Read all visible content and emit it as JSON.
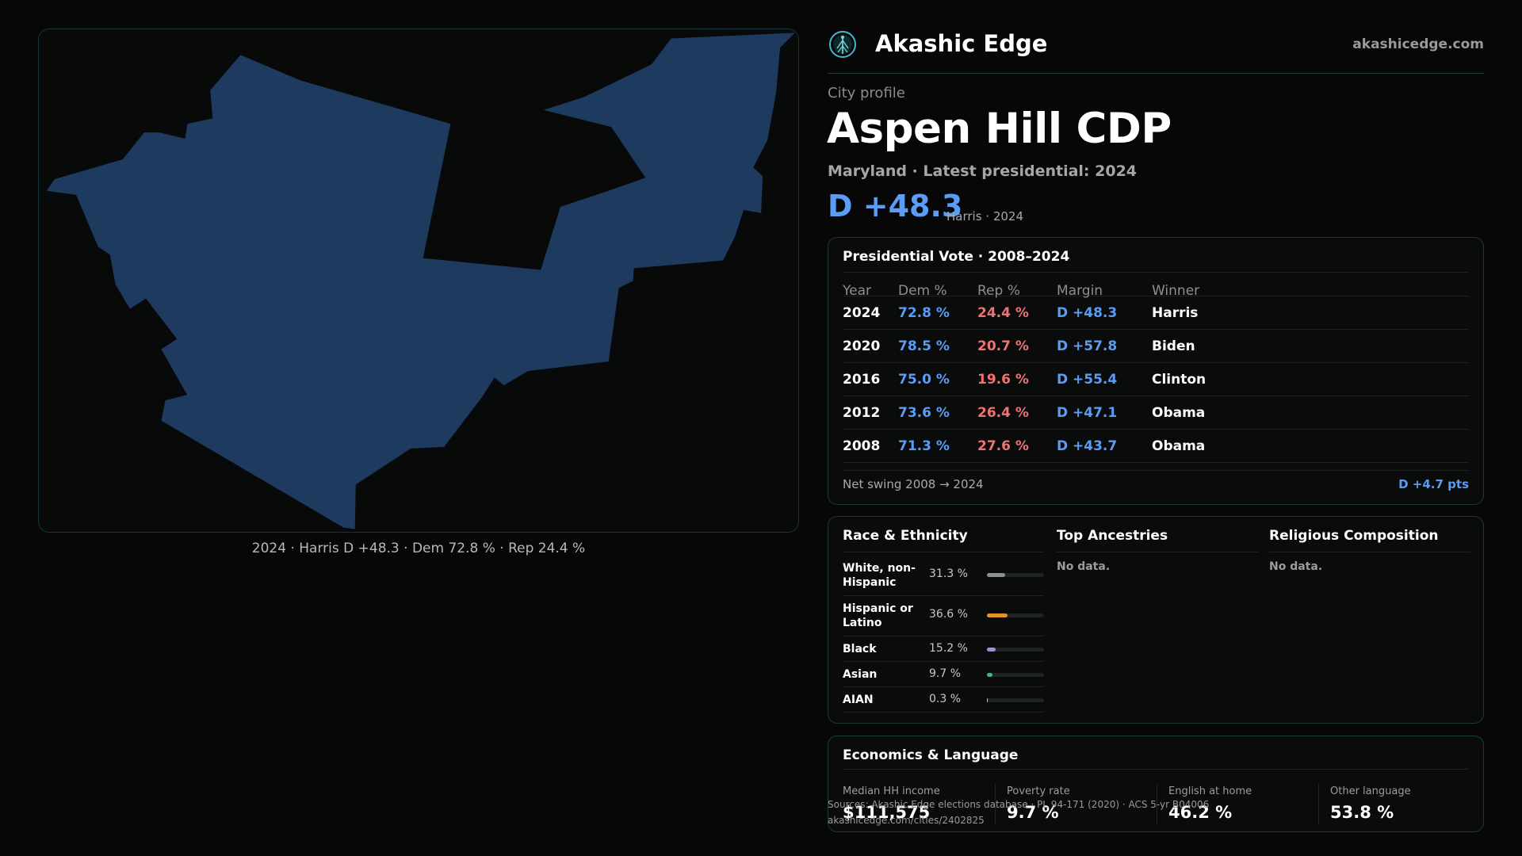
{
  "map": {
    "caption": "2024 · Harris D +48.3 · Dem 72.8 % · Rep 24.4 %",
    "fill_color": "#1f3a5f"
  },
  "header": {
    "logo_icon": "tree-of-life-icon",
    "brand": "Akashic Edge",
    "site": "akashicedge.com"
  },
  "profile": {
    "kicker": "City profile",
    "city": "Aspen Hill CDP",
    "subtitle": "Maryland · Latest presidential: 2024",
    "margin": "D +48.3",
    "margin_note": "Harris · 2024"
  },
  "vote": {
    "title": "Presidential Vote · 2008–2024",
    "headers": {
      "year": "Year",
      "dem": "Dem %",
      "rep": "Rep %",
      "margin": "Margin",
      "winner": "Winner"
    },
    "rows": [
      {
        "year": "2024",
        "dem": "72.8 %",
        "rep": "24.4 %",
        "margin": "D +48.3",
        "winner": "Harris"
      },
      {
        "year": "2020",
        "dem": "78.5 %",
        "rep": "20.7 %",
        "margin": "D +57.8",
        "winner": "Biden"
      },
      {
        "year": "2016",
        "dem": "75.0 %",
        "rep": "19.6 %",
        "margin": "D +55.4",
        "winner": "Clinton"
      },
      {
        "year": "2012",
        "dem": "73.6 %",
        "rep": "26.4 %",
        "margin": "D +47.1",
        "winner": "Obama"
      },
      {
        "year": "2008",
        "dem": "71.3 %",
        "rep": "27.6 %",
        "margin": "D +43.7",
        "winner": "Obama"
      }
    ],
    "swing_label": "Net swing 2008 → 2024",
    "swing_value": "D +4.7 pts"
  },
  "race": {
    "title": "Race & Ethnicity",
    "rows": [
      {
        "label": "White, non-Hispanic",
        "pct": "31.3 %",
        "value": 31.3,
        "color": "#8a9096"
      },
      {
        "label": "Hispanic or Latino",
        "pct": "36.6 %",
        "value": 36.6,
        "color": "#e0952a"
      },
      {
        "label": "Black",
        "pct": "15.2 %",
        "value": 15.2,
        "color": "#9b8fe0"
      },
      {
        "label": "Asian",
        "pct": "9.7 %",
        "value": 9.7,
        "color": "#2fbf84"
      },
      {
        "label": "AIAN",
        "pct": "0.3 %",
        "value": 0.3,
        "color": "#c0c0c0"
      }
    ]
  },
  "ancestries": {
    "title": "Top Ancestries",
    "empty": "No data."
  },
  "religion": {
    "title": "Religious Composition",
    "empty": "No data."
  },
  "economics": {
    "title": "Economics & Language",
    "items": [
      {
        "label": "Median HH income",
        "value": "$111,575"
      },
      {
        "label": "Poverty rate",
        "value": "9.7 %"
      },
      {
        "label": "English at home",
        "value": "46.2 %"
      },
      {
        "label": "Other language",
        "value": "53.8 %"
      }
    ]
  },
  "source": {
    "line1": "Sources: Akashic Edge elections database · PL 94-171 (2020) · ACS 5-yr B04006",
    "line2": "akashicedge.com/cities/2402825"
  }
}
